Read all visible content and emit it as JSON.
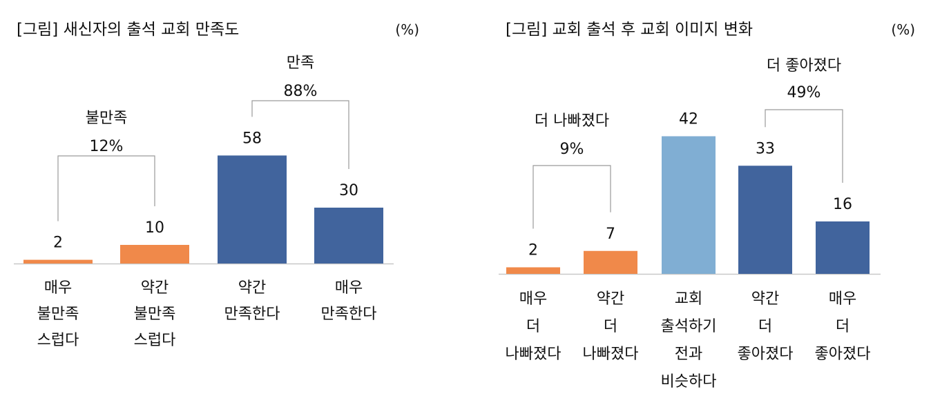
{
  "chart_data": [
    {
      "type": "bar",
      "title": "[그림] 새신자의 출석 교회 만족도",
      "unit": "(%)",
      "categories": [
        [
          "매우",
          "불만족",
          "스럽다"
        ],
        [
          "약간",
          "불만족",
          "스럽다"
        ],
        [
          "약간",
          "만족한다"
        ],
        [
          "매우",
          "만족한다"
        ]
      ],
      "values": [
        2,
        10,
        58,
        30
      ],
      "colors": [
        "#f0894a",
        "#f0894a",
        "#41649d",
        "#41649d"
      ],
      "value_labels": [
        "2",
        "10",
        "58",
        "30"
      ],
      "brackets": [
        {
          "from": 0,
          "to": 1,
          "label": "불만족",
          "value": "12%"
        },
        {
          "from": 2,
          "to": 3,
          "label": "만족",
          "value": "88%"
        }
      ]
    },
    {
      "type": "bar",
      "title": "[그림] 교회 출석 후 교회 이미지 변화",
      "unit": "(%)",
      "categories": [
        [
          "매우",
          "더",
          "나빠졌다"
        ],
        [
          "약간",
          "더",
          "나빠졌다"
        ],
        [
          "교회",
          "출석하기",
          "전과",
          "비슷하다"
        ],
        [
          "약간",
          "더",
          "좋아졌다"
        ],
        [
          "매우",
          "더",
          "좋아졌다"
        ]
      ],
      "values": [
        2,
        7,
        42,
        33,
        16
      ],
      "colors": [
        "#f0894a",
        "#f0894a",
        "#80aed3",
        "#41649d",
        "#41649d"
      ],
      "value_labels": [
        "2",
        "7",
        "42",
        "33",
        "16"
      ],
      "brackets": [
        {
          "from": 0,
          "to": 1,
          "label": "더 나빠졌다",
          "value": "9%"
        },
        {
          "from": 3,
          "to": 4,
          "label": "더 좋아졌다",
          "value": "49%"
        }
      ]
    }
  ]
}
